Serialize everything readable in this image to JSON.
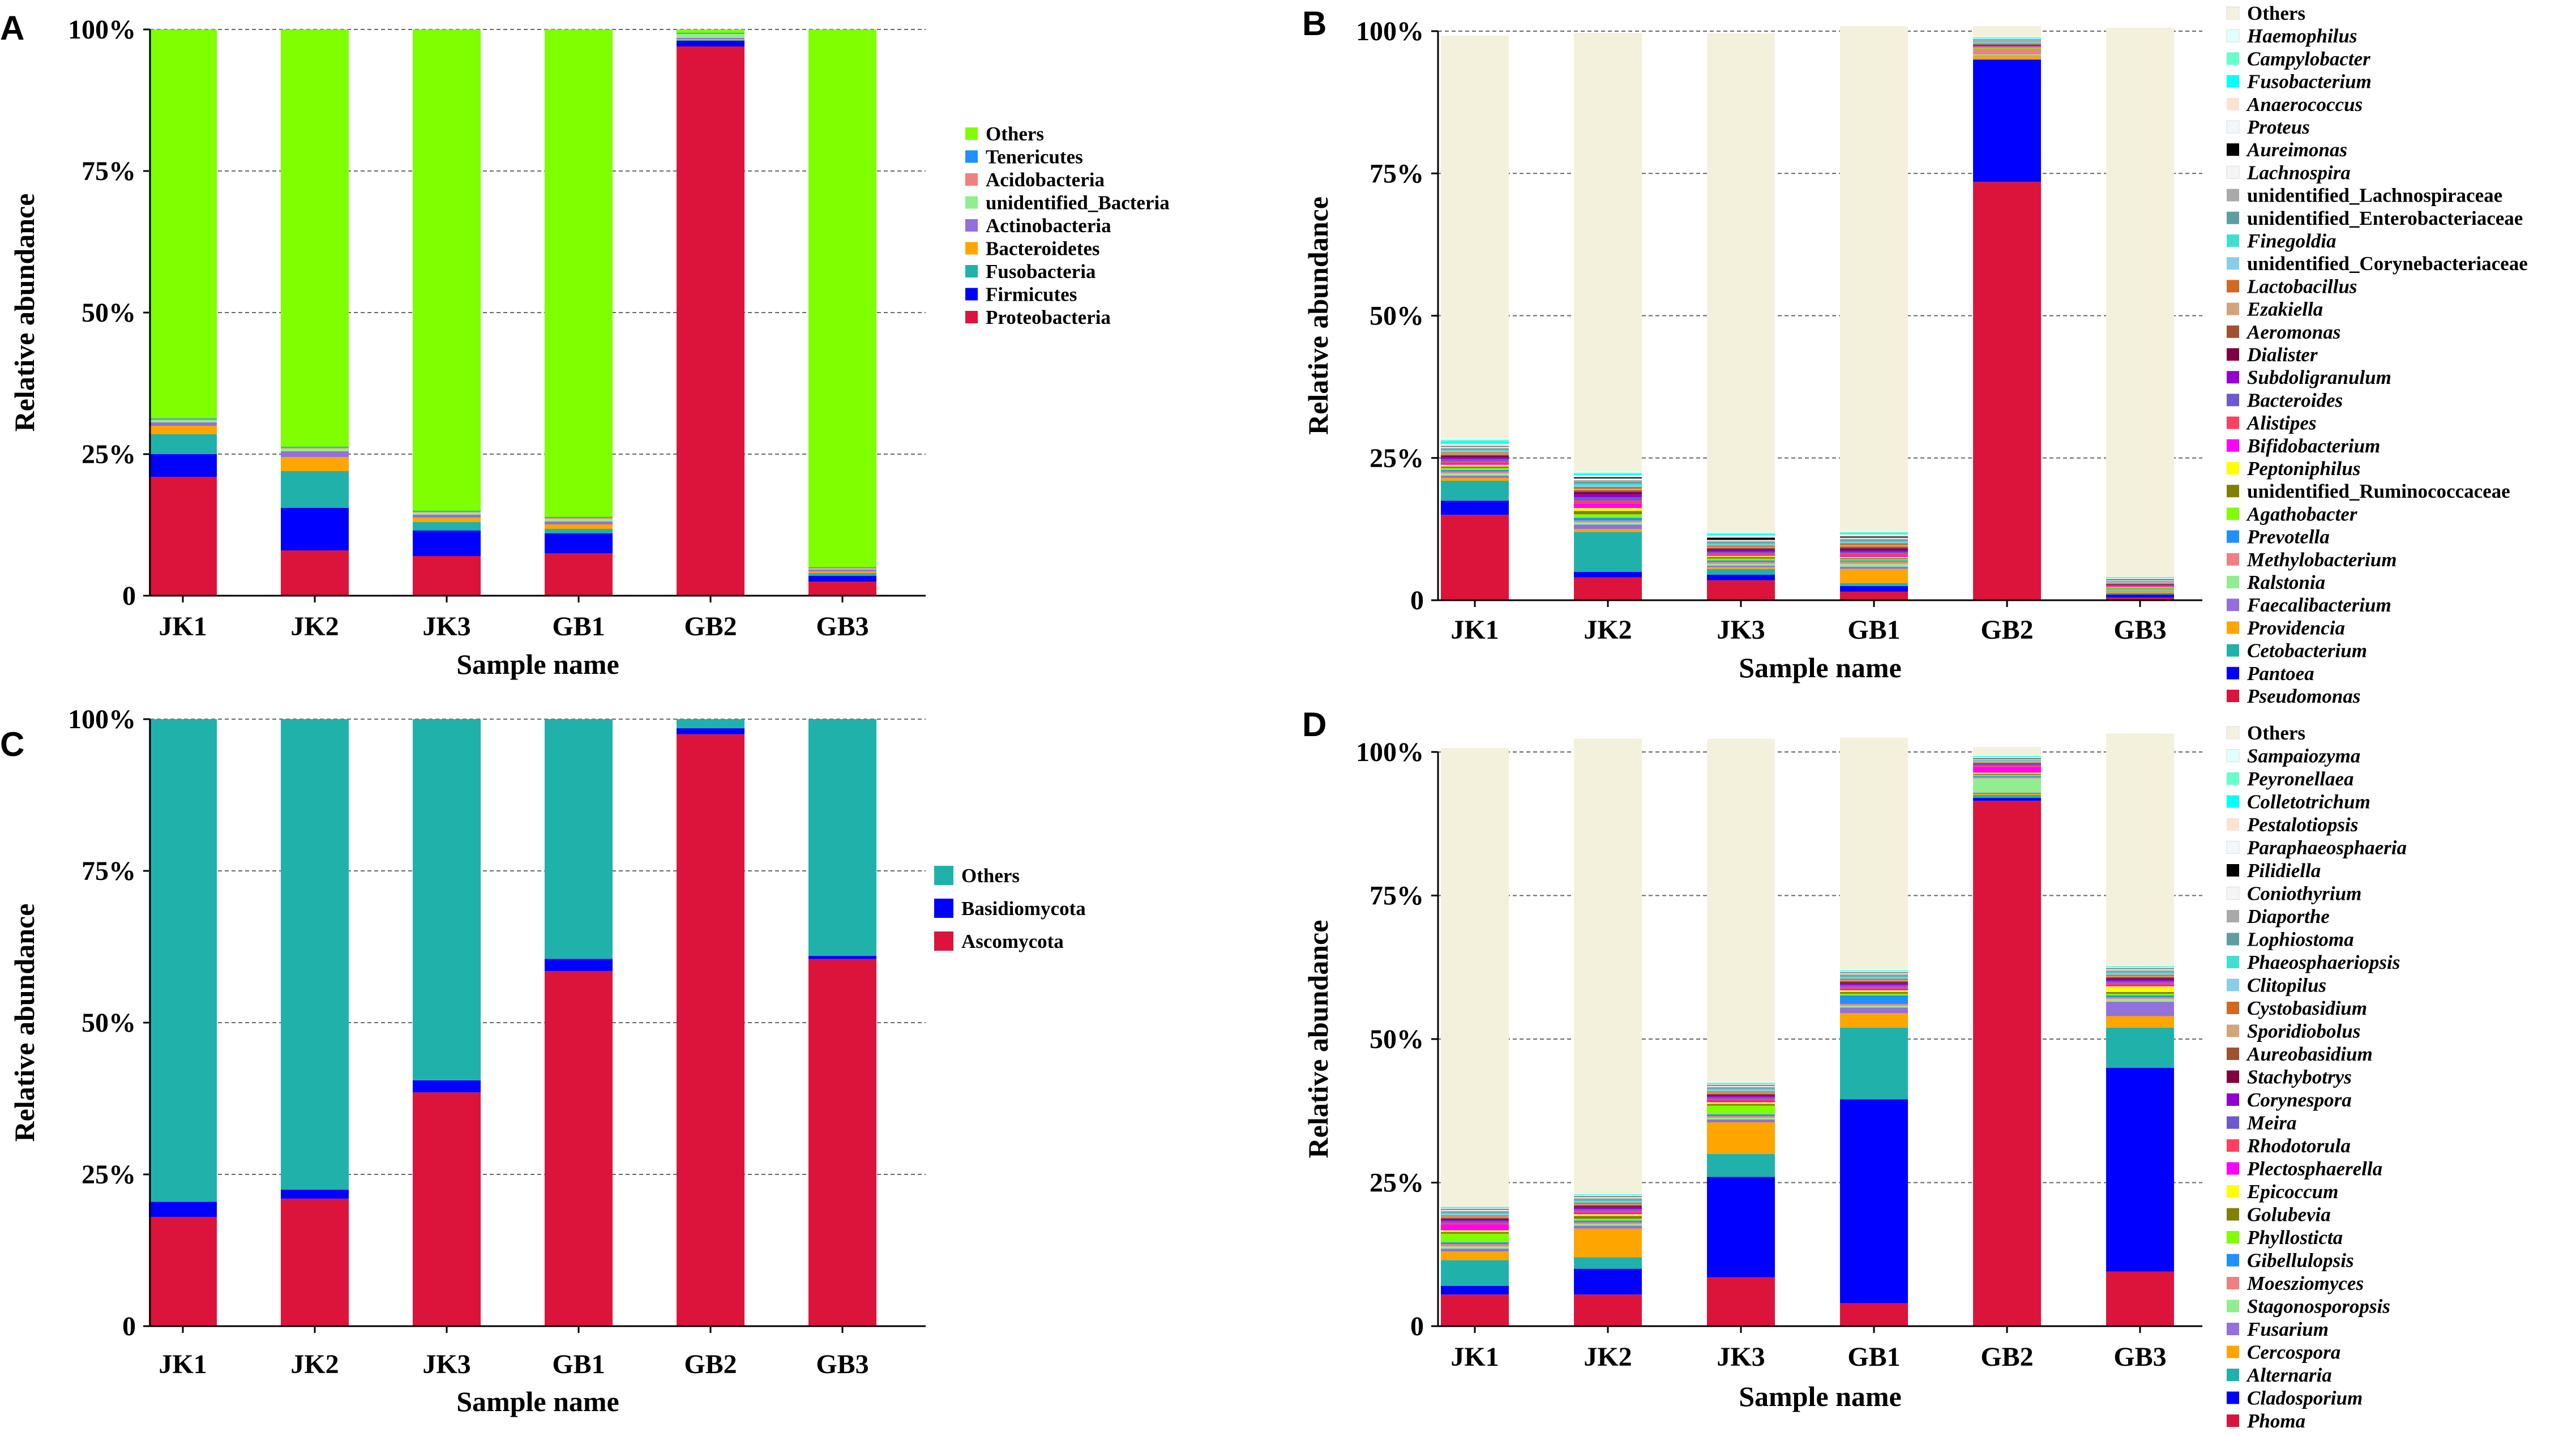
{
  "figure": {
    "colors": {
      "bg": "#ffffff",
      "axis": "#000000",
      "grid": "#666666"
    }
  },
  "chart_data": [
    {
      "panel": "A",
      "type": "bar",
      "stacked": true,
      "title": "",
      "xlabel": "Sample name",
      "ylabel": "Relative abundance",
      "ylim": [
        0,
        100
      ],
      "yticks": [
        "0",
        "25%",
        "50%",
        "75%",
        "100%"
      ],
      "grid": true,
      "legend_italic": false,
      "legend_position": "right",
      "categories": [
        "JK1",
        "JK2",
        "JK3",
        "GB1",
        "GB2",
        "GB3"
      ],
      "series": [
        {
          "name": "Proteobacteria",
          "color": "#dc143c",
          "values": [
            21,
            8,
            7,
            7.5,
            97,
            2.5
          ]
        },
        {
          "name": "Firmicutes",
          "color": "#0000ff",
          "values": [
            4,
            7.5,
            4.5,
            3.5,
            1,
            1
          ]
        },
        {
          "name": "Fusobacteria",
          "color": "#20b2aa",
          "values": [
            3.5,
            6.5,
            1.5,
            0.8,
            0.1,
            0.5
          ]
        },
        {
          "name": "Bacteroidetes",
          "color": "#ffa500",
          "values": [
            1.5,
            2.5,
            0.8,
            0.8,
            0.2,
            0.3
          ]
        },
        {
          "name": "Actinobacteria",
          "color": "#9370db",
          "values": [
            0.6,
            1,
            0.5,
            0.5,
            0.2,
            0.3
          ]
        },
        {
          "name": "unidentified_Bacteria",
          "color": "#90ee90",
          "values": [
            0.4,
            0.5,
            0.4,
            0.5,
            0.7,
            0.2
          ]
        },
        {
          "name": "Acidobacteria",
          "color": "#f08080",
          "values": [
            0.2,
            0.2,
            0.2,
            0.2,
            0.1,
            0.1
          ]
        },
        {
          "name": "Tenericutes",
          "color": "#1e90ff",
          "values": [
            0.1,
            0.1,
            0.1,
            0.1,
            0.1,
            0.1
          ]
        },
        {
          "name": "Others",
          "color": "#7fff00",
          "values": [
            68.7,
            73.7,
            85,
            86.1,
            0.6,
            95
          ]
        }
      ]
    },
    {
      "panel": "B",
      "type": "bar",
      "stacked": true,
      "title": "",
      "xlabel": "Sample name",
      "ylabel": "Relative abundance",
      "ylim": [
        0,
        100
      ],
      "yticks": [
        "0",
        "25%",
        "50%",
        "75%",
        "100%"
      ],
      "grid": true,
      "legend_italic": true,
      "legend_position": "right",
      "categories": [
        "JK1",
        "JK2",
        "JK3",
        "GB1",
        "GB2",
        "GB3"
      ],
      "series": [
        {
          "name": "Pseudomonas",
          "color": "#dc143c",
          "values": [
            15,
            4,
            3.5,
            1.5,
            73.5,
            0.5
          ]
        },
        {
          "name": "Pantoea",
          "color": "#0000ff",
          "values": [
            2.5,
            1,
            1,
            1,
            21.5,
            0.5
          ]
        },
        {
          "name": "Cetobacterium",
          "color": "#20b2aa",
          "values": [
            3.5,
            7,
            1,
            0.5,
            0.1,
            0.3
          ]
        },
        {
          "name": "Providencia",
          "color": "#ffa500",
          "values": [
            0.5,
            0.5,
            0.3,
            2.5,
            0.5,
            0.3
          ]
        },
        {
          "name": "Faecalibacterium",
          "color": "#9370db",
          "values": [
            0.4,
            0.8,
            0.3,
            0.4,
            0.1,
            0.1
          ]
        },
        {
          "name": "Ralstonia",
          "color": "#90ee90",
          "values": [
            0.4,
            0.4,
            0.3,
            0.5,
            0.2,
            0.1
          ]
        },
        {
          "name": "Methylobacterium",
          "color": "#f08080",
          "values": [
            0.3,
            0.3,
            0.3,
            0.4,
            0.8,
            0.1
          ]
        },
        {
          "name": "Prevotella",
          "color": "#1e90ff",
          "values": [
            0.3,
            0.5,
            0.3,
            0.2,
            0.1,
            0.1
          ]
        },
        {
          "name": "Agathobacter",
          "color": "#7fff00",
          "values": [
            0.3,
            0.6,
            0.3,
            0.2,
            0.1,
            0.1
          ]
        },
        {
          "name": "unidentified_Ruminococcaceae",
          "color": "#808000",
          "values": [
            0.3,
            0.6,
            0.3,
            0.2,
            0.1,
            0.1
          ]
        },
        {
          "name": "Peptoniphilus",
          "color": "#ffff00",
          "values": [
            0.3,
            0.5,
            0.2,
            0.2,
            0.1,
            0.1
          ]
        },
        {
          "name": "Bifidobacterium",
          "color": "#ff00ff",
          "values": [
            0.3,
            0.8,
            0.2,
            0.3,
            0.1,
            0.1
          ]
        },
        {
          "name": "Alistipes",
          "color": "#ff4060",
          "values": [
            0.3,
            0.5,
            0.2,
            0.3,
            0.1,
            0.1
          ]
        },
        {
          "name": "Bacteroides",
          "color": "#6a5acd",
          "values": [
            0.4,
            0.6,
            0.3,
            0.3,
            0.1,
            0.1
          ]
        },
        {
          "name": "Subdoligranulum",
          "color": "#9400d3",
          "values": [
            0.3,
            0.5,
            0.3,
            0.3,
            0.1,
            0.1
          ]
        },
        {
          "name": "Dialister",
          "color": "#800040",
          "values": [
            0.3,
            0.4,
            0.2,
            0.3,
            0.1,
            0.1
          ]
        },
        {
          "name": "Aeromonas",
          "color": "#a0522d",
          "values": [
            0.2,
            0.3,
            0.2,
            0.3,
            0.1,
            0.1
          ]
        },
        {
          "name": "Ezakiella",
          "color": "#d2a679",
          "values": [
            0.2,
            0.3,
            0.2,
            0.3,
            0.1,
            0.1
          ]
        },
        {
          "name": "Lactobacillus",
          "color": "#d2691e",
          "values": [
            0.2,
            0.3,
            0.2,
            0.3,
            0.1,
            0.1
          ]
        },
        {
          "name": "unidentified_Corynebacteriaceae",
          "color": "#87ceeb",
          "values": [
            0.2,
            0.3,
            0.2,
            0.2,
            0.1,
            0.1
          ]
        },
        {
          "name": "Finegoldia",
          "color": "#40e0d0",
          "values": [
            0.2,
            0.3,
            0.2,
            0.2,
            0.1,
            0.1
          ]
        },
        {
          "name": "unidentified_Enterobacteriaceae",
          "color": "#5f9ea0",
          "values": [
            0.2,
            0.3,
            0.2,
            0.2,
            0.1,
            0.1
          ]
        },
        {
          "name": "unidentified_Lachnospiraceae",
          "color": "#a9a9a9",
          "values": [
            0.2,
            0.3,
            0.2,
            0.2,
            0.1,
            0.1
          ]
        },
        {
          "name": "Lachnospira",
          "color": "#f5f5f5",
          "values": [
            0.2,
            0.3,
            0.2,
            0.2,
            0.1,
            0.1
          ]
        },
        {
          "name": "Aureimonas",
          "color": "#000000",
          "values": [
            0.1,
            0.2,
            0.4,
            0.2,
            0.1,
            0.1
          ]
        },
        {
          "name": "Proteus",
          "color": "#f0f8ff",
          "values": [
            0.2,
            0.2,
            0.2,
            0.2,
            0.1,
            0.1
          ]
        },
        {
          "name": "Anaerococcus",
          "color": "#fbe3d0",
          "values": [
            0.2,
            0.2,
            0.2,
            0.2,
            0.1,
            0.1
          ]
        },
        {
          "name": "Fusobacterium",
          "color": "#00ffff",
          "values": [
            0.4,
            0.2,
            0.2,
            0.2,
            0.1,
            0.1
          ]
        },
        {
          "name": "Campylobacter",
          "color": "#66ffcc",
          "values": [
            0.3,
            0.2,
            0.2,
            0.2,
            0.1,
            0.1
          ]
        },
        {
          "name": "Haemophilus",
          "color": "#e0ffff",
          "values": [
            0.3,
            0.2,
            0.2,
            0.2,
            0.1,
            0.1
          ]
        },
        {
          "name": "Others",
          "color": "#f3f1dc",
          "values": [
            70.7,
            77.1,
            87.6,
            88.7,
            1.9,
            96.4
          ]
        }
      ]
    },
    {
      "panel": "C",
      "type": "bar",
      "stacked": true,
      "title": "",
      "xlabel": "Sample name",
      "ylabel": "Relative abundance",
      "ylim": [
        0,
        100
      ],
      "yticks": [
        "0",
        "25%",
        "50%",
        "75%",
        "100%"
      ],
      "grid": true,
      "legend_italic": false,
      "legend_position": "right",
      "categories": [
        "JK1",
        "JK2",
        "JK3",
        "GB1",
        "GB2",
        "GB3"
      ],
      "series": [
        {
          "name": "Ascomycota",
          "color": "#dc143c",
          "values": [
            18,
            21,
            38.5,
            58.5,
            97.5,
            60.5
          ]
        },
        {
          "name": "Basidiomycota",
          "color": "#0000ff",
          "values": [
            2.5,
            1.5,
            2,
            2,
            1,
            0.5
          ]
        },
        {
          "name": "Others",
          "color": "#20b2aa",
          "values": [
            79.5,
            77.5,
            59.5,
            39.5,
            1.5,
            39
          ]
        }
      ]
    },
    {
      "panel": "D",
      "type": "bar",
      "stacked": true,
      "title": "",
      "xlabel": "Sample name",
      "ylabel": "Relative abundance",
      "ylim": [
        0,
        100
      ],
      "yticks": [
        "0",
        "25%",
        "50%",
        "75%",
        "100%"
      ],
      "grid": true,
      "legend_italic": true,
      "legend_position": "right",
      "categories": [
        "JK1",
        "JK2",
        "JK3",
        "GB1",
        "GB2",
        "GB3"
      ],
      "series": [
        {
          "name": "Phoma",
          "color": "#dc143c",
          "values": [
            5.5,
            5.5,
            8.5,
            4,
            91.5,
            9.5
          ]
        },
        {
          "name": "Cladosporium",
          "color": "#0000ff",
          "values": [
            1.5,
            4.5,
            17.5,
            35.5,
            0.5,
            35.5
          ]
        },
        {
          "name": "Alternaria",
          "color": "#20b2aa",
          "values": [
            4.5,
            2,
            4,
            12.5,
            0.5,
            7
          ]
        },
        {
          "name": "Cercospora",
          "color": "#ffa500",
          "values": [
            1.5,
            5,
            5.5,
            2.5,
            0.2,
            2
          ]
        },
        {
          "name": "Fusarium",
          "color": "#9370db",
          "values": [
            0.5,
            0.5,
            0.5,
            1,
            0.2,
            2.5
          ]
        },
        {
          "name": "Stagonosporopsis",
          "color": "#90ee90",
          "values": [
            0.4,
            0.3,
            0.3,
            0.3,
            2.5,
            0.5
          ]
        },
        {
          "name": "Moesziomyces",
          "color": "#f08080",
          "values": [
            0.4,
            0.3,
            0.3,
            0.3,
            0.2,
            0.3
          ]
        },
        {
          "name": "Gibellulopsis",
          "color": "#1e90ff",
          "values": [
            0.3,
            0.3,
            0.3,
            1.5,
            0.2,
            0.3
          ]
        },
        {
          "name": "Phyllosticta",
          "color": "#7fff00",
          "values": [
            1.5,
            0.3,
            1.5,
            0.3,
            0.2,
            0.3
          ]
        },
        {
          "name": "Golubevia",
          "color": "#808000",
          "values": [
            0.3,
            0.5,
            0.3,
            0.3,
            0.2,
            0.3
          ]
        },
        {
          "name": "Epicoccum",
          "color": "#ffff00",
          "values": [
            0.3,
            0.3,
            0.3,
            0.3,
            0.2,
            1
          ]
        },
        {
          "name": "Plectosphaerella",
          "color": "#ff00ff",
          "values": [
            1,
            0.3,
            0.3,
            0.3,
            1,
            0.3
          ]
        },
        {
          "name": "Rhodotorula",
          "color": "#ff4060",
          "values": [
            0.3,
            0.3,
            0.3,
            0.3,
            0.2,
            0.3
          ]
        },
        {
          "name": "Meira",
          "color": "#6a5acd",
          "values": [
            0.3,
            0.3,
            0.3,
            0.3,
            0.2,
            0.3
          ]
        },
        {
          "name": "Corynespora",
          "color": "#9400d3",
          "values": [
            0.2,
            0.3,
            0.2,
            0.3,
            0.1,
            0.3
          ]
        },
        {
          "name": "Stachybotrys",
          "color": "#800040",
          "values": [
            0.2,
            0.2,
            0.2,
            0.2,
            0.1,
            0.2
          ]
        },
        {
          "name": "Aureobasidium",
          "color": "#a0522d",
          "values": [
            0.2,
            0.2,
            0.2,
            0.2,
            0.1,
            0.2
          ]
        },
        {
          "name": "Sporidiobolus",
          "color": "#d2a679",
          "values": [
            0.2,
            0.2,
            0.2,
            0.2,
            0.1,
            0.2
          ]
        },
        {
          "name": "Cystobasidium",
          "color": "#d2691e",
          "values": [
            0.2,
            0.2,
            0.2,
            0.2,
            0.1,
            0.2
          ]
        },
        {
          "name": "Clitopilus",
          "color": "#87ceeb",
          "values": [
            0.2,
            0.2,
            0.2,
            0.2,
            0.1,
            0.2
          ]
        },
        {
          "name": "Phaeosphaeriopsis",
          "color": "#40e0d0",
          "values": [
            0.2,
            0.2,
            0.2,
            0.2,
            0.1,
            0.2
          ]
        },
        {
          "name": "Lophiostoma",
          "color": "#5f9ea0",
          "values": [
            0.2,
            0.2,
            0.2,
            0.2,
            0.1,
            0.2
          ]
        },
        {
          "name": "Diaporthe",
          "color": "#a9a9a9",
          "values": [
            0.2,
            0.2,
            0.2,
            0.2,
            0.1,
            0.2
          ]
        },
        {
          "name": "Coniothyrium",
          "color": "#f5f5f5",
          "values": [
            0.2,
            0.2,
            0.2,
            0.2,
            0.1,
            0.2
          ]
        },
        {
          "name": "Pilidiella",
          "color": "#000000",
          "values": [
            0.1,
            0.1,
            0.1,
            0.1,
            0.1,
            0.1
          ]
        },
        {
          "name": "Paraphaeosphaeria",
          "color": "#f0f8ff",
          "values": [
            0.1,
            0.1,
            0.1,
            0.1,
            0.1,
            0.1
          ]
        },
        {
          "name": "Pestalotiopsis",
          "color": "#fbe3d0",
          "values": [
            0.1,
            0.1,
            0.1,
            0.1,
            0.1,
            0.1
          ]
        },
        {
          "name": "Colletotrichum",
          "color": "#00ffff",
          "values": [
            0.1,
            0.1,
            0.1,
            0.1,
            0.1,
            0.1
          ]
        },
        {
          "name": "Peyronellaea",
          "color": "#66ffcc",
          "values": [
            0.1,
            0.1,
            0.1,
            0.1,
            0.1,
            0.1
          ]
        },
        {
          "name": "Sampaiozyma",
          "color": "#e0ffff",
          "values": [
            0.1,
            0.1,
            0.1,
            0.1,
            0.1,
            0.1
          ]
        },
        {
          "name": "Others",
          "color": "#f3f1dc",
          "values": [
            79.8,
            79.2,
            59.8,
            40.4,
            1.5,
            40.4
          ]
        }
      ]
    }
  ]
}
